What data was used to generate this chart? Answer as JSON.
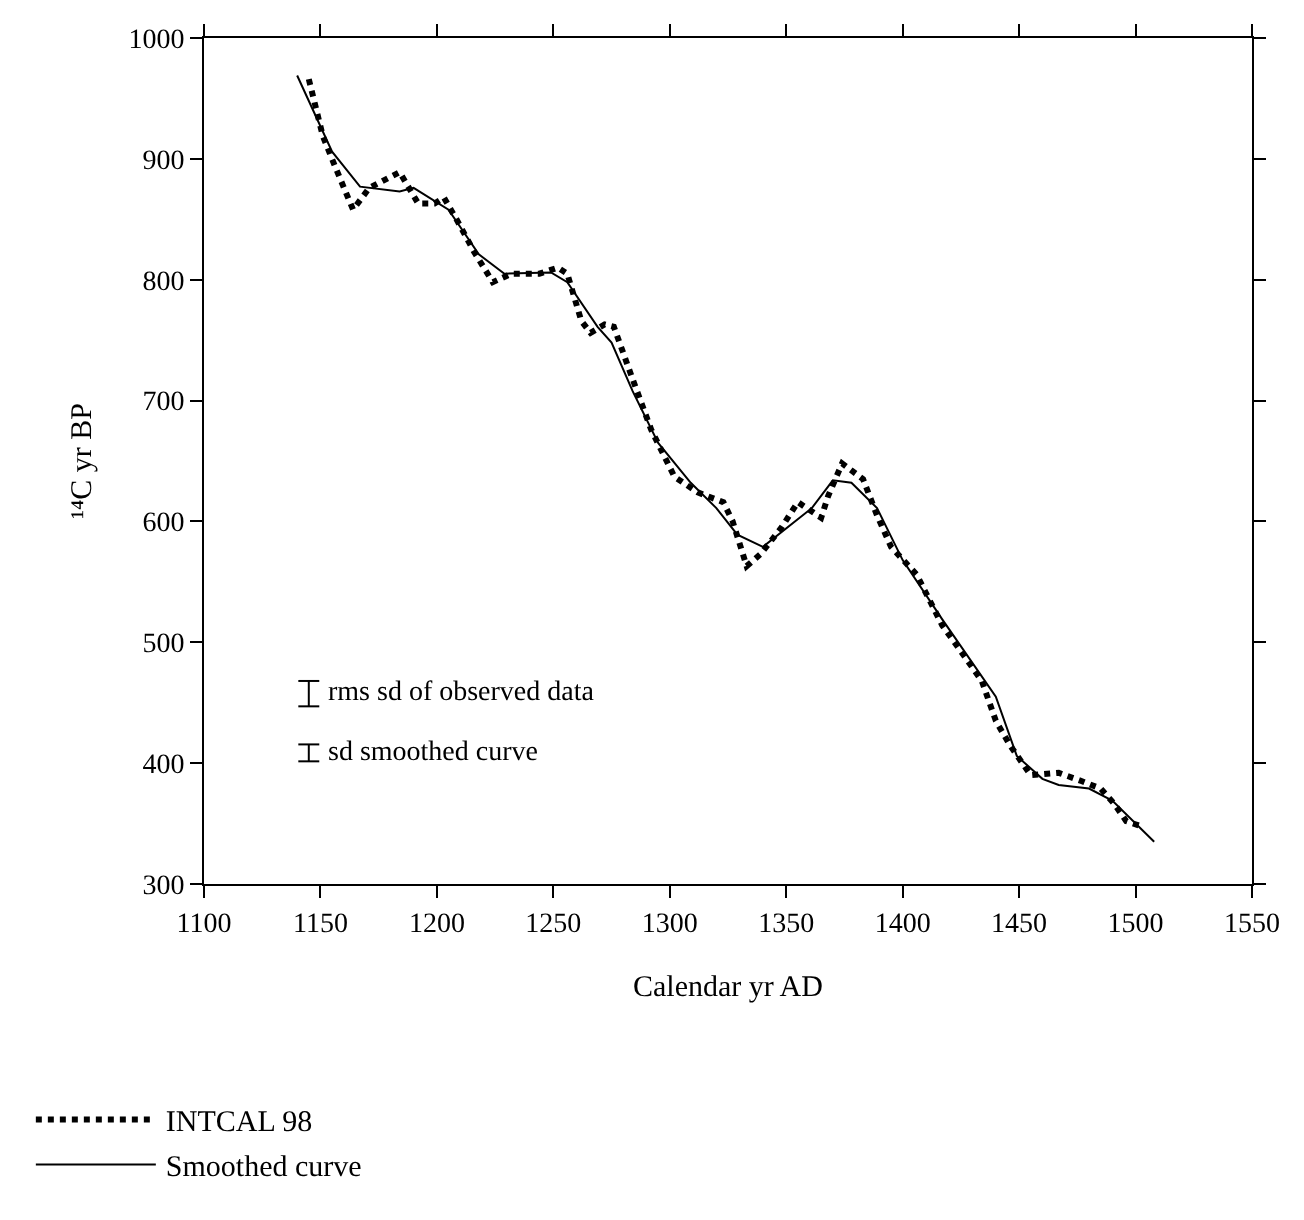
{
  "chart_data": {
    "type": "line",
    "xlabel": "Calendar yr AD",
    "ylabel": "¹⁴C yr BP",
    "xlim": [
      1100,
      1550
    ],
    "ylim": [
      300,
      1000
    ],
    "xticks": [
      1100,
      1150,
      1200,
      1250,
      1300,
      1350,
      1400,
      1450,
      1500,
      1550
    ],
    "yticks": [
      300,
      400,
      500,
      600,
      700,
      800,
      900,
      1000
    ],
    "legend": "bottom",
    "annotations": [
      "rms sd of observed data",
      "sd smoothed curve"
    ],
    "series": [
      {
        "name": "INTCAL 98",
        "color": "#000000",
        "line_style": "dotted",
        "x": [
          1145,
          1151,
          1156,
          1164,
          1171,
          1184,
          1192,
          1199,
          1203,
          1209,
          1216,
          1224,
          1232,
          1244,
          1252,
          1256,
          1262,
          1266,
          1272,
          1276,
          1284,
          1292,
          1302,
          1312,
          1323,
          1327,
          1333,
          1339,
          1348,
          1355,
          1365,
          1368,
          1374,
          1383,
          1389,
          1395,
          1406,
          1417,
          1423,
          1434,
          1440,
          1446,
          1455,
          1467,
          1477,
          1485,
          1491,
          1496,
          1502
        ],
        "values": [
          966,
          919,
          895,
          858,
          876,
          889,
          863,
          863,
          868,
          848,
          823,
          798,
          805,
          805,
          810,
          805,
          766,
          756,
          763,
          761,
          718,
          676,
          637,
          624,
          616,
          600,
          563,
          573,
          595,
          616,
          603,
          621,
          648,
          635,
          605,
          579,
          556,
          514,
          498,
          468,
          435,
          415,
          390,
          392,
          385,
          379,
          366,
          352,
          348
        ]
      },
      {
        "name": "Smoothed curve",
        "color": "#000000",
        "line_style": "solid",
        "x": [
          1140,
          1155,
          1167,
          1184,
          1190,
          1205,
          1218,
          1229,
          1249,
          1256,
          1269,
          1275,
          1284,
          1295,
          1309,
          1320,
          1329,
          1340,
          1361,
          1370,
          1378,
          1389,
          1400,
          1417,
          1440,
          1449,
          1460,
          1467,
          1480,
          1490,
          1508
        ],
        "values": [
          969,
          906,
          877,
          873,
          876,
          858,
          821,
          805,
          806,
          798,
          761,
          748,
          708,
          665,
          632,
          611,
          589,
          579,
          611,
          634,
          632,
          611,
          568,
          519,
          455,
          406,
          387,
          382,
          379,
          369,
          335
        ]
      }
    ]
  }
}
